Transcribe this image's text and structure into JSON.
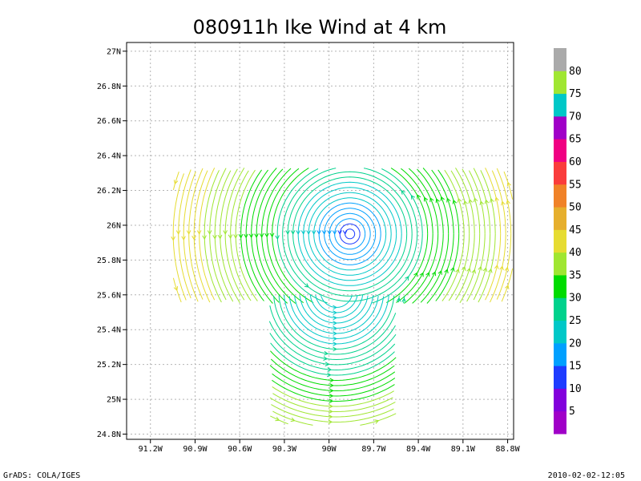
{
  "footer": {
    "left": "GrADS: COLA/IGES",
    "right": "2010-02-02-12:05"
  },
  "chart_data": {
    "type": "streamline",
    "title": "080911h Ike Wind at 4 km",
    "xlabel": "",
    "ylabel": "",
    "x_ticks": [
      {
        "value": -91.2,
        "label": "91.2W"
      },
      {
        "value": -90.9,
        "label": "90.9W"
      },
      {
        "value": -90.6,
        "label": "90.6W"
      },
      {
        "value": -90.3,
        "label": "90.3W"
      },
      {
        "value": -90.0,
        "label": "90W"
      },
      {
        "value": -89.7,
        "label": "89.7W"
      },
      {
        "value": -89.4,
        "label": "89.4W"
      },
      {
        "value": -89.1,
        "label": "89.1W"
      },
      {
        "value": -88.8,
        "label": "88.8W"
      }
    ],
    "y_ticks": [
      {
        "value": 24.8,
        "label": "24.8N"
      },
      {
        "value": 25.0,
        "label": "25N"
      },
      {
        "value": 25.2,
        "label": "25.2N"
      },
      {
        "value": 25.4,
        "label": "25.4N"
      },
      {
        "value": 25.6,
        "label": "25.6N"
      },
      {
        "value": 25.8,
        "label": "25.8N"
      },
      {
        "value": 26.0,
        "label": "26N"
      },
      {
        "value": 26.2,
        "label": "26.2N"
      },
      {
        "value": 26.4,
        "label": "26.4N"
      },
      {
        "value": 26.6,
        "label": "26.6N"
      },
      {
        "value": 26.8,
        "label": "26.8N"
      },
      {
        "value": 27.0,
        "label": "27N"
      }
    ],
    "xlim": [
      -91.36,
      -88.76
    ],
    "ylim": [
      24.77,
      27.05
    ],
    "grid": true,
    "vortex_centers": [
      {
        "name": "main",
        "lon": -89.86,
        "lat": 25.95
      },
      {
        "name": "southern",
        "lon": -89.95,
        "lat": 25.62
      }
    ],
    "colorbar": {
      "placement": "right",
      "levels": [
        5,
        10,
        15,
        20,
        25,
        30,
        35,
        40,
        45,
        50,
        55,
        60,
        65,
        70,
        75,
        80
      ],
      "colors": [
        "#a000c8",
        "#8200dc",
        "#1e3cff",
        "#00a0ff",
        "#00c8c8",
        "#00d28c",
        "#00dc00",
        "#a0e632",
        "#e6dc32",
        "#e6af2d",
        "#f08228",
        "#fa3c3c",
        "#f00082",
        "#a000c8",
        "#00c8c8",
        "#a0e632",
        "#aaaaaa"
      ]
    }
  }
}
